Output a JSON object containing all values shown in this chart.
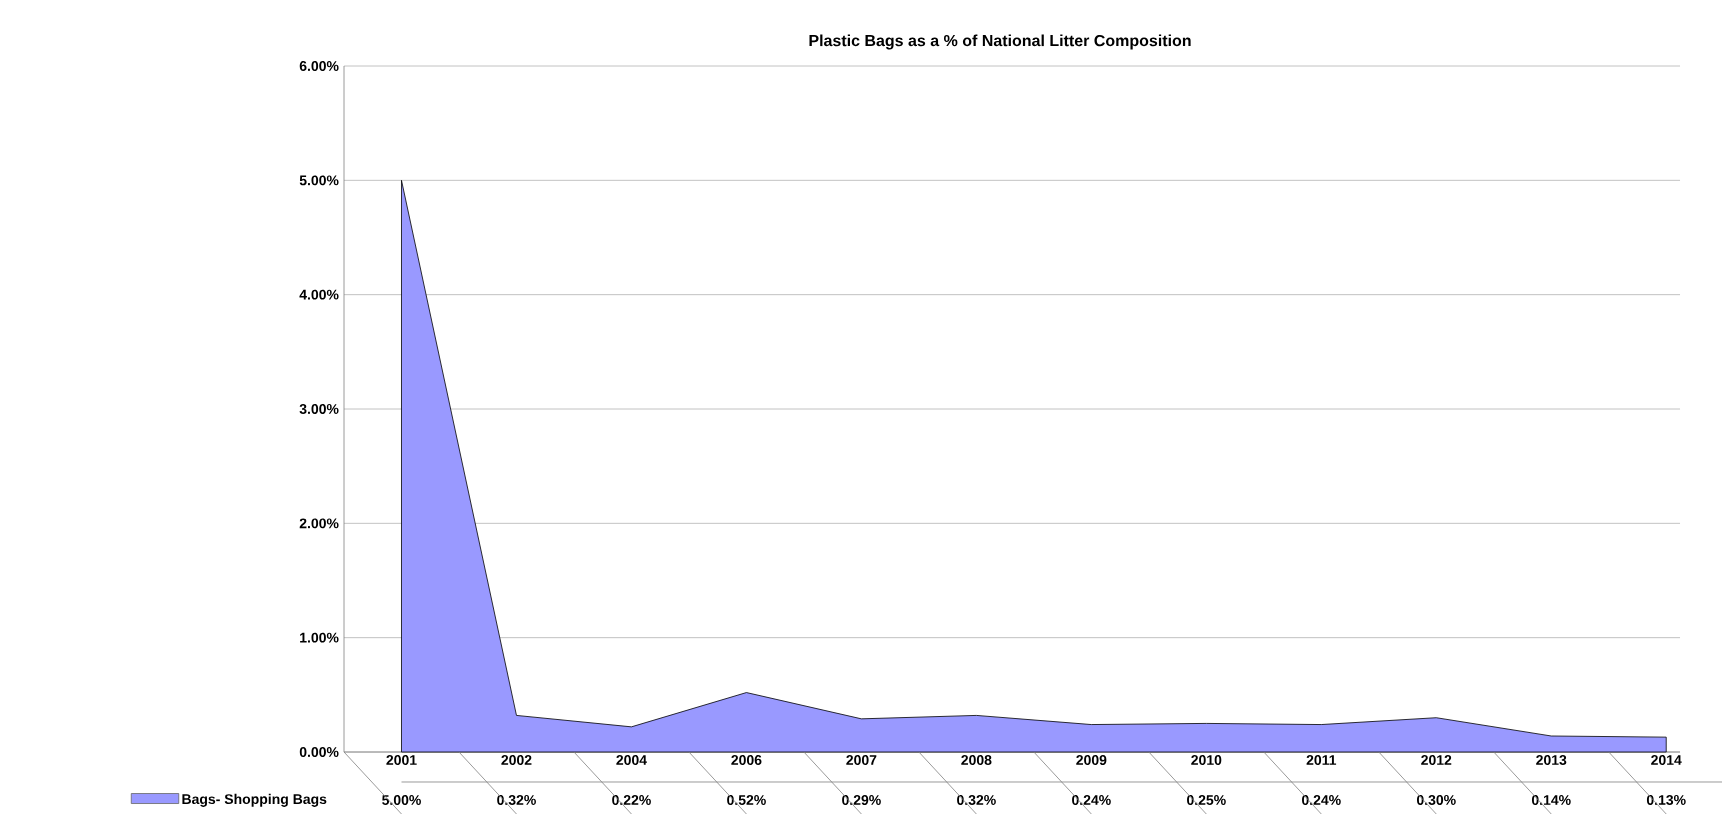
{
  "chart_data": {
    "type": "area",
    "title": "Plastic Bags as a % of National Litter Composition",
    "categories": [
      "2001",
      "2002",
      "2004",
      "2006",
      "2007",
      "2008",
      "2009",
      "2010",
      "2011",
      "2012",
      "2013",
      "2014"
    ],
    "series": [
      {
        "name": "Bags- Shopping Bags",
        "color": "#9999ff",
        "values": [
          5.0,
          0.32,
          0.22,
          0.52,
          0.29,
          0.32,
          0.24,
          0.25,
          0.24,
          0.3,
          0.14,
          0.13
        ],
        "value_labels": [
          "5.00%",
          "0.32%",
          "0.22%",
          "0.52%",
          "0.29%",
          "0.32%",
          "0.24%",
          "0.25%",
          "0.24%",
          "0.30%",
          "0.14%",
          "0.13%"
        ]
      }
    ],
    "ylim": [
      0,
      6
    ],
    "yticks": [
      {
        "value": 0,
        "label": "0.00%"
      },
      {
        "value": 1,
        "label": "1.00%"
      },
      {
        "value": 2,
        "label": "2.00%"
      },
      {
        "value": 3,
        "label": "3.00%"
      },
      {
        "value": 4,
        "label": "4.00%"
      },
      {
        "value": 5,
        "label": "5.00%"
      },
      {
        "value": 6,
        "label": "6.00%"
      }
    ],
    "grid": "y",
    "legend": "bottom"
  }
}
